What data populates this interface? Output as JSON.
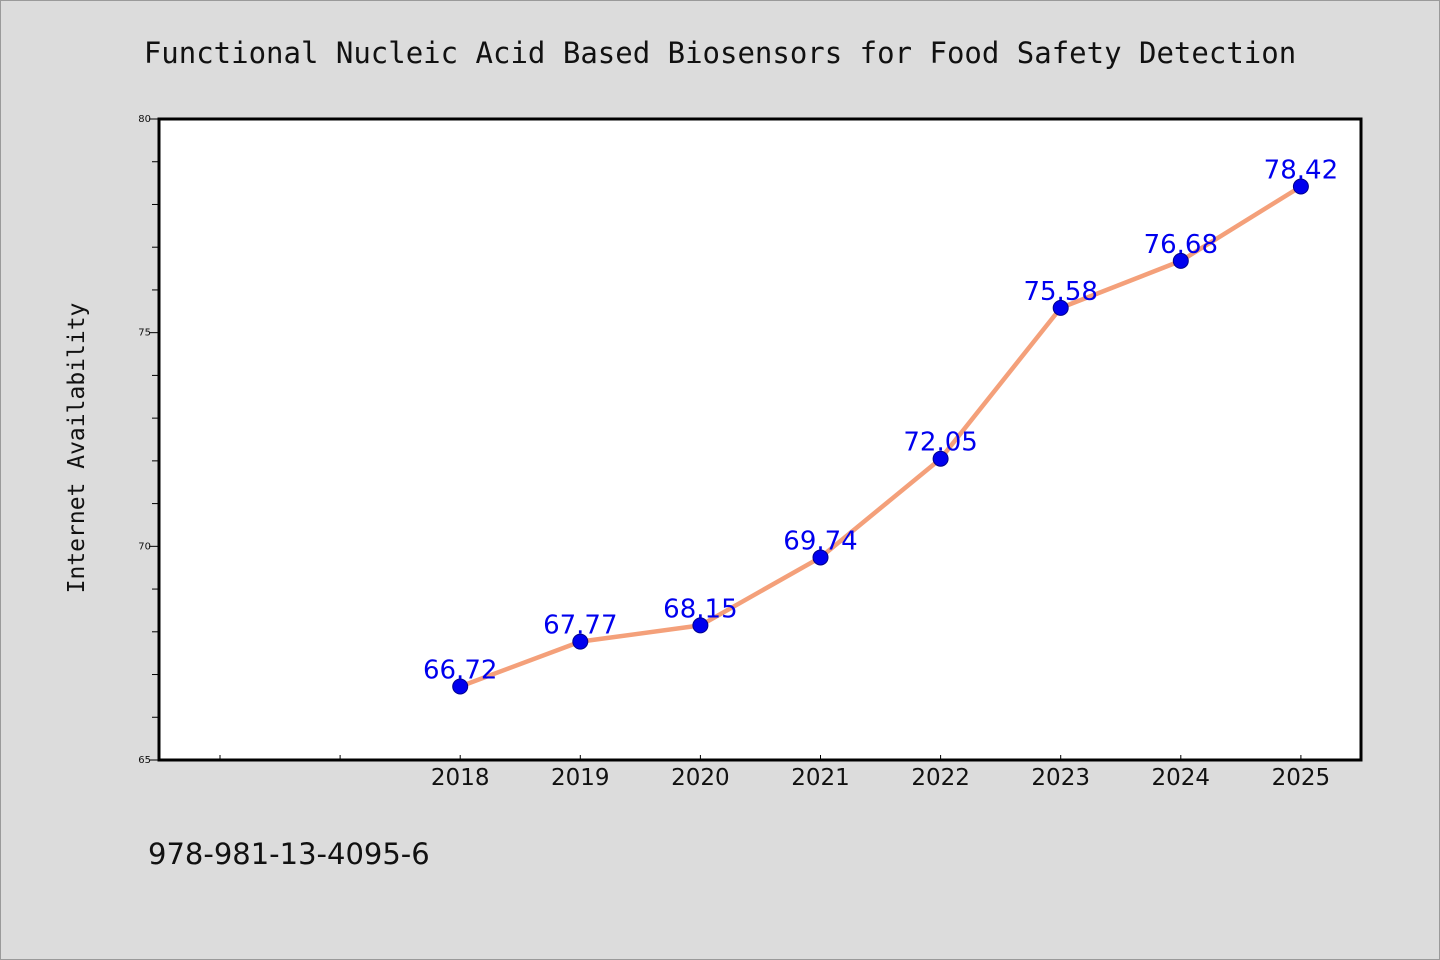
{
  "chart_data": {
    "type": "line",
    "title": "Functional Nucleic Acid Based Biosensors for Food Safety Detection",
    "xlabel": "",
    "ylabel": "Internet Availability",
    "categories": [
      "2018",
      "2019",
      "2020",
      "2021",
      "2022",
      "2023",
      "2024",
      "2025"
    ],
    "series": [
      {
        "values": [
          66.72,
          67.77,
          68.15,
          69.74,
          72.05,
          75.58,
          76.68,
          78.42
        ],
        "labels": [
          "66.72",
          "67.77",
          "68.15",
          "69.74",
          "72.05",
          "75.58",
          "76.68",
          "78.42"
        ]
      }
    ],
    "ylim": [
      65,
      80
    ],
    "yticks": [
      65,
      70,
      75,
      80
    ],
    "ytick_labels": [
      "65",
      "70",
      "75",
      "80"
    ],
    "grid": false,
    "colors": {
      "line": "#f4a07a",
      "marker": "#0000ee",
      "label": "#0000ee"
    }
  },
  "footer": {
    "isbn": "978-981-13-4095-6"
  }
}
